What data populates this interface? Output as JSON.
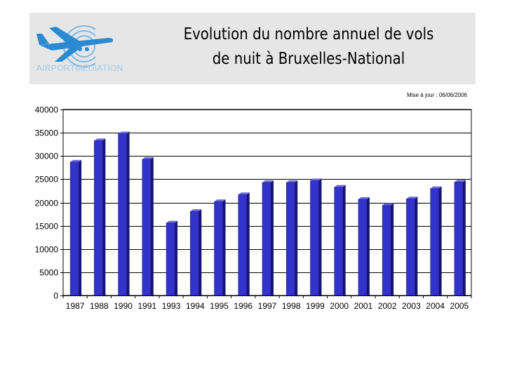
{
  "header": {
    "title_line1": "Evolution du nombre annuel de vols",
    "title_line2": "de nuit à Bruxelles-National",
    "logo_text": "AIRPORTMEDIATION",
    "update_note": "Mise à jour : 06/06/2006"
  },
  "colors": {
    "bar_front": "#3333cc",
    "bar_side": "#16166e",
    "bar_top": "#6b6bdd",
    "logo_blue": "#2a8ad2",
    "header_bg": "#e6e6e6"
  },
  "chart_data": {
    "type": "bar",
    "title": "Evolution du nombre annuel de vols de nuit à Bruxelles-National",
    "xlabel": "",
    "ylabel": "",
    "categories": [
      "1987",
      "1988",
      "1990",
      "1991",
      "1993",
      "1994",
      "1995",
      "1996",
      "1997",
      "1998",
      "1999",
      "2000",
      "2001",
      "2002",
      "2003",
      "2004",
      "2005"
    ],
    "values": [
      28700,
      33300,
      34800,
      29300,
      15600,
      18100,
      20200,
      21700,
      24300,
      24300,
      24700,
      23300,
      20700,
      19400,
      20800,
      23000,
      24400
    ],
    "ylim": [
      0,
      40000
    ],
    "yticks": [
      "0",
      "5000",
      "10000",
      "15000",
      "20000",
      "25000",
      "30000",
      "35000",
      "40000"
    ],
    "grid": true,
    "legend": "none"
  }
}
